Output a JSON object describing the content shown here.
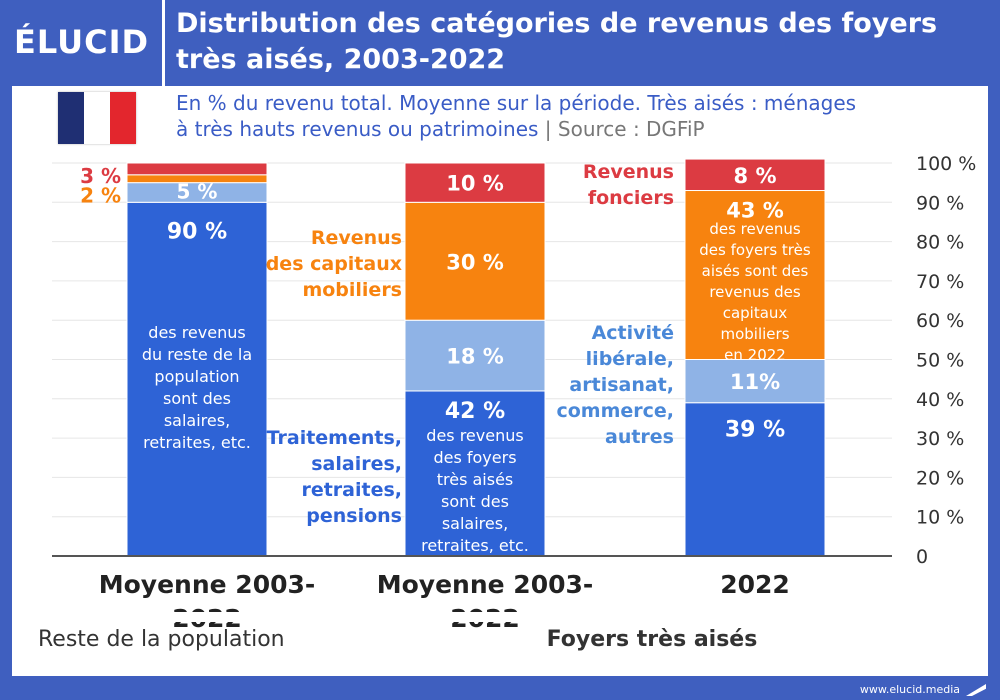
{
  "header": {
    "logo": "ÉLUCID",
    "title_line1": "Distribution des catégories de revenus des foyers",
    "title_line2": "très aisés, 2003-2022"
  },
  "subtitle": {
    "line1": "En % du revenu total. Moyenne sur la période. Très aisés : ménages",
    "line2": "à très hauts revenus ou patrimoines",
    "separator": "|",
    "source": "Source : DGFiP"
  },
  "footer": {
    "url": "www.elucid.media"
  },
  "colors": {
    "salaires": "#2e63d6",
    "activite": "#8fb3e6",
    "capitaux": "#f7830f",
    "fonciers": "#dc3b42"
  },
  "chart_data": {
    "type": "bar",
    "stacked": true,
    "ylim": [
      0,
      100
    ],
    "yticks": [
      "0",
      "10 %",
      "20 %",
      "30 %",
      "40 %",
      "50 %",
      "60 %",
      "70 %",
      "80 %",
      "90 %",
      "100 %"
    ],
    "categories": [
      {
        "label_line1": "Moyenne 2003-",
        "label_line2": "2022"
      },
      {
        "label_line1": "Moyenne 2003-",
        "label_line2": "2022"
      },
      {
        "label_line1": "2022",
        "label_line2": ""
      }
    ],
    "groups": [
      {
        "label": "Reste de la population",
        "bold": false
      },
      {
        "label": "Foyers très aisés",
        "bold": true
      }
    ],
    "series": [
      {
        "key": "salaires",
        "name_lines": [
          "Traitements,",
          "salaires,",
          "retraites,",
          "pensions"
        ],
        "values": [
          90,
          42,
          39
        ],
        "value_labels": [
          "90 %",
          "42 %",
          "39 %"
        ]
      },
      {
        "key": "activite",
        "name_lines": [
          "Activité",
          "libérale,",
          "artisanat,",
          "commerce,",
          "autres"
        ],
        "values": [
          5,
          18,
          11
        ],
        "value_labels": [
          "5 %",
          "18 %",
          "11%"
        ]
      },
      {
        "key": "capitaux",
        "name_lines": [
          "Revenus",
          "des capitaux",
          "mobiliers"
        ],
        "values": [
          2,
          30,
          43
        ],
        "value_labels": [
          "2 %",
          "30 %",
          "43 %"
        ]
      },
      {
        "key": "fonciers",
        "name_lines": [
          "Revenus",
          "fonciers"
        ],
        "values": [
          3,
          10,
          8
        ],
        "value_labels": [
          "3 %",
          "10 %",
          "8 %"
        ]
      }
    ],
    "annotations": [
      [
        "des revenus",
        "du reste de la",
        "population",
        "sont des",
        "salaires,",
        "retraites, etc."
      ],
      [
        "des revenus",
        "des foyers",
        "très aisés",
        "sont des",
        "salaires,",
        "retraites, etc."
      ],
      [
        "des revenus",
        "des foyers très",
        "aisés sont des",
        "revenus des",
        "capitaux",
        "mobiliers",
        "en 2022"
      ]
    ]
  }
}
